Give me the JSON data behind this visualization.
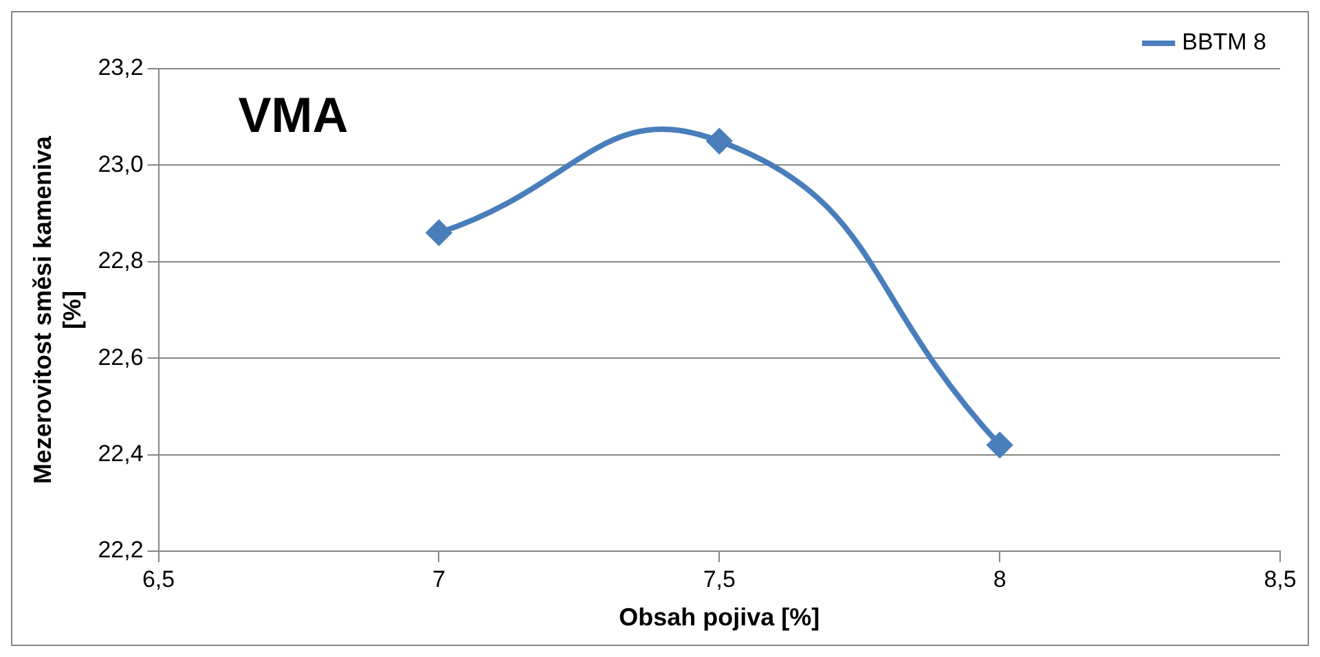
{
  "chart_data": {
    "type": "line",
    "title": "VMA",
    "xlabel": "Obsah pojiva [%]",
    "ylabel": "Mezerovitost směsi kameniva [%]",
    "x": [
      7,
      7.5,
      8
    ],
    "series": [
      {
        "name": "BBTM 8",
        "color": "#4a7ebb",
        "values": [
          22.86,
          23.05,
          22.42
        ]
      }
    ],
    "xlim": [
      6.5,
      8.5
    ],
    "xticks": [
      {
        "value": 6.5,
        "label": "6,5"
      },
      7,
      {
        "value": 7.5,
        "label": "7,5"
      },
      8,
      {
        "value": 8.5,
        "label": "8,5"
      }
    ],
    "ylim": [
      22.2,
      23.2
    ],
    "yticks": [
      {
        "value": 22.2,
        "label": "22,2"
      },
      {
        "value": 22.4,
        "label": "22,4"
      },
      {
        "value": 22.6,
        "label": "22,6"
      },
      {
        "value": 22.8,
        "label": "22,8"
      },
      {
        "value": 23,
        "label": "23,0"
      },
      {
        "value": 23.2,
        "label": "23,2"
      }
    ],
    "grid": "y",
    "legend": "top right",
    "marker": "diamond",
    "line_style": "solid"
  }
}
